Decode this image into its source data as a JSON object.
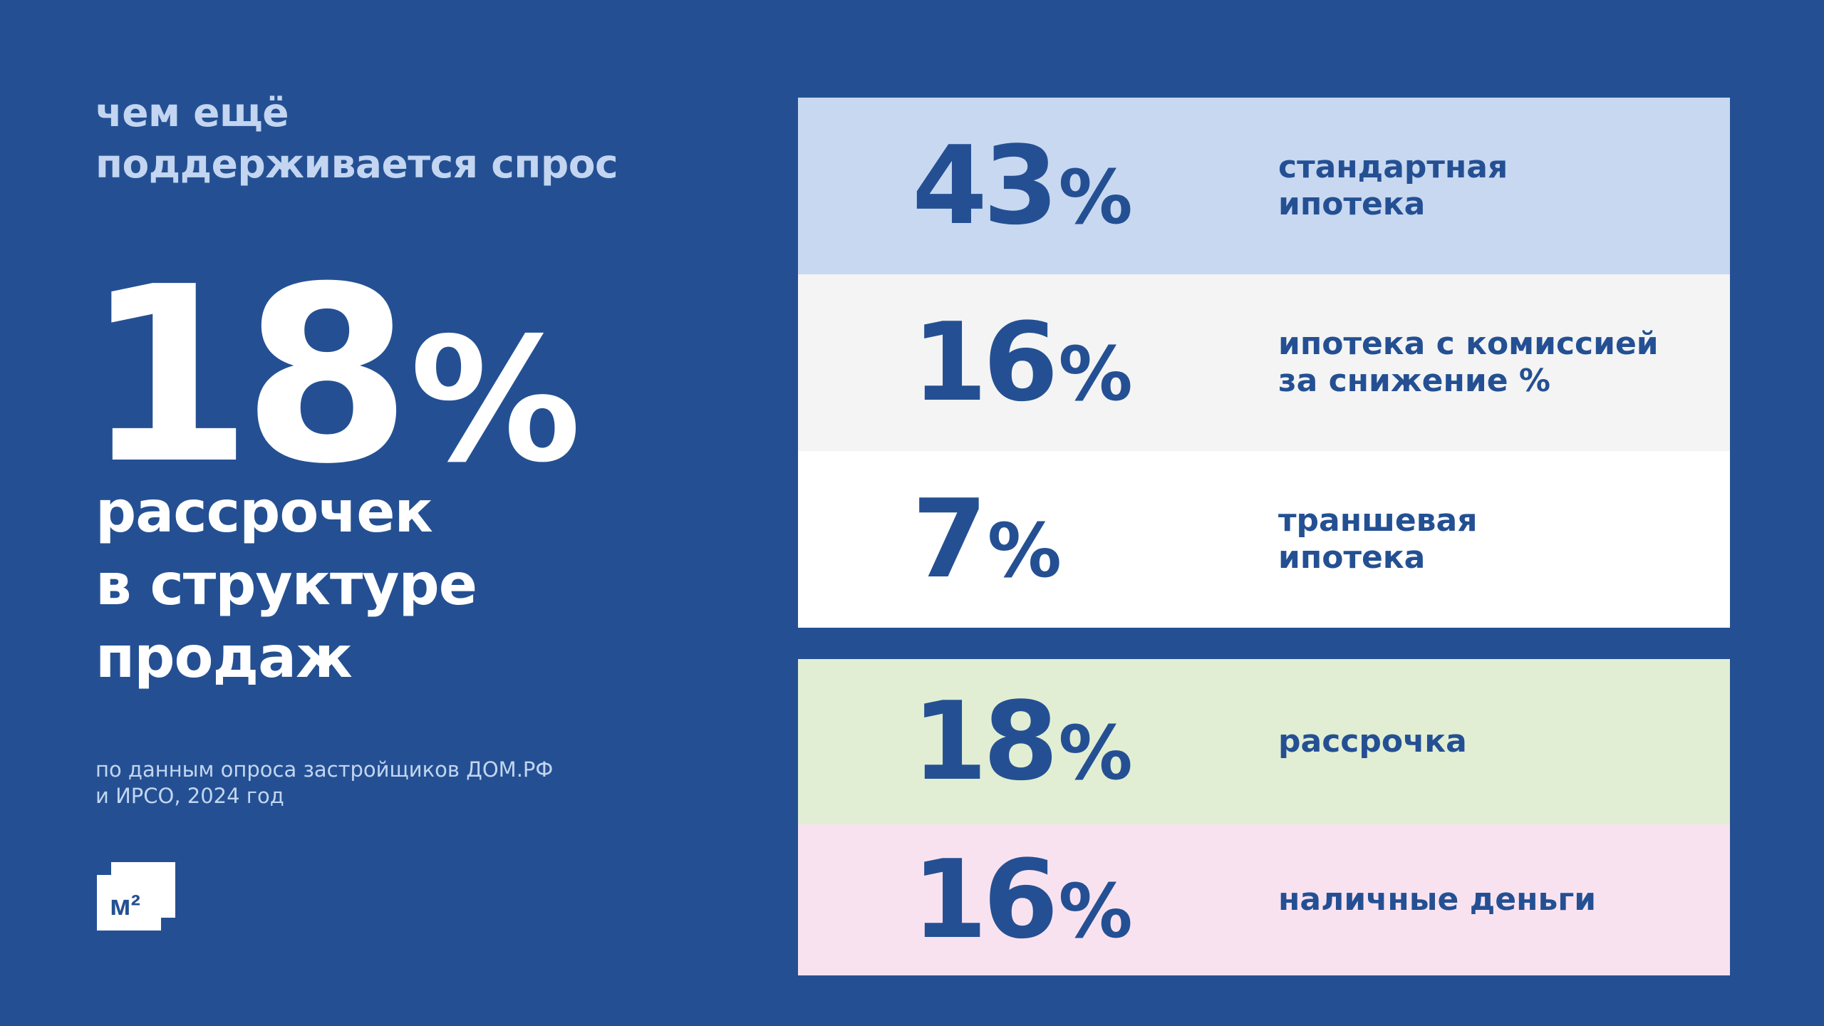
{
  "heading": {
    "line1": "чем ещё",
    "line2": "поддерживается спрос"
  },
  "headline_stat": {
    "value": "18",
    "unit": "%",
    "caption_line1": "рассрочек",
    "caption_line2": "в структуре",
    "caption_line3": "продаж"
  },
  "source": {
    "line1": "по данным опроса застройщиков ДОМ.РФ",
    "line2": "и ИРСО,  2024 год"
  },
  "logo": {
    "text": "м²"
  },
  "stats": [
    {
      "value": "43",
      "unit": "%",
      "label_line1": "стандартная",
      "label_line2": "ипотека",
      "color": "#c8d8f1"
    },
    {
      "value": "16",
      "unit": "%",
      "label_line1": "ипотека с комиссией",
      "label_line2": "за снижение %",
      "color": "#f4f4f4"
    },
    {
      "value": "7",
      "unit": "%",
      "label_line1": "траншевая",
      "label_line2": "ипотека",
      "color": "#ffffff"
    },
    {
      "value": "18",
      "unit": "%",
      "label_line1": "рассрочка",
      "label_line2": "",
      "color": "#e1eed3"
    },
    {
      "value": "16",
      "unit": "%",
      "label_line1": "наличные деньги",
      "label_line2": "",
      "color": "#f9e2f0"
    }
  ],
  "colors": {
    "background": "#245093",
    "accent_text": "#245093",
    "heading_text": "#c3d5f0",
    "white": "#ffffff"
  }
}
